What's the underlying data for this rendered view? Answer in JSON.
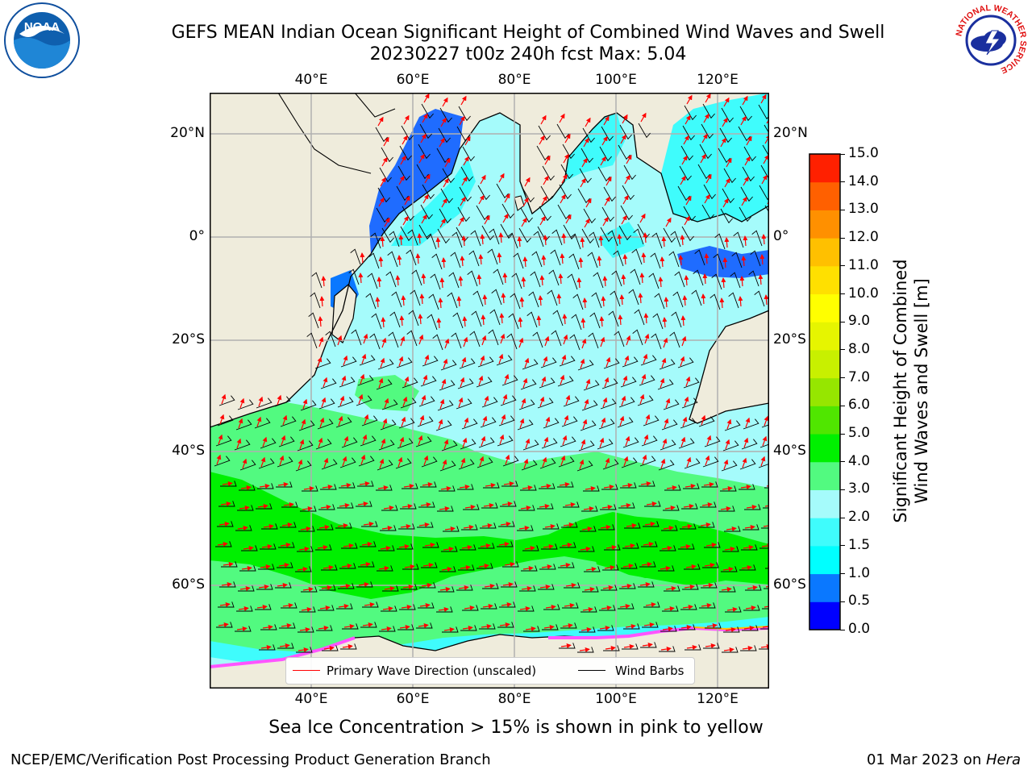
{
  "header": {
    "title_line1": "GEFS MEAN Indian Ocean Significant Height of Combined Wind Waves and Swell",
    "title_line2": "20230227 t00z 240h fcst   Max: 5.04"
  },
  "logos": {
    "left": {
      "icon": "noaa-logo",
      "text": "NOAA"
    },
    "right": {
      "icon": "nws-logo",
      "text": "NATIONAL WEATHER SERVICE"
    }
  },
  "map": {
    "lon_labels": [
      "40°E",
      "60°E",
      "80°E",
      "100°E",
      "120°E"
    ],
    "lat_labels_left": [
      "20°N",
      "0°",
      "20°S",
      "40°S",
      "60°S"
    ],
    "lat_labels_right": [
      "20°N",
      "0°",
      "20°S",
      "40°S",
      "60°S"
    ],
    "colors": {
      "land": "#efecdc",
      "ocean_base": "#a5fbfb",
      "wave_arrow": "#ff0000",
      "wind_barb": "#000000",
      "ice": "#ff55ff"
    }
  },
  "legend": {
    "wave": {
      "label": "Primary Wave Direction (unscaled)",
      "color": "#ff0000"
    },
    "wind": {
      "label": "Wind Barbs",
      "color": "#000000"
    }
  },
  "colorbar": {
    "title_line1": "Significant Height of Combined",
    "title_line2": "Wind Waves and Swell [m]",
    "levels": [
      "0.0",
      "0.5",
      "1.0",
      "1.5",
      "2.0",
      "3.0",
      "4.0",
      "5.0",
      "6.0",
      "7.0",
      "8.0",
      "9.0",
      "10.0",
      "11.0",
      "12.0",
      "13.0",
      "14.0",
      "15.0"
    ],
    "colors": [
      "#0000ff",
      "#0a78ff",
      "#00ffff",
      "#3ffcfc",
      "#a5fbfb",
      "#52fa80",
      "#00f000",
      "#50e600",
      "#96e600",
      "#c8f000",
      "#e6f500",
      "#ffff00",
      "#ffe000",
      "#ffc000",
      "#ff9000",
      "#ff6000",
      "#ff2000"
    ]
  },
  "footer": {
    "ice_note": "Sea Ice Concentration > 15% is shown in pink to yellow",
    "left": "NCEP/EMC/Verification Post Processing Product Generation Branch",
    "date": "01 Mar 2023 on ",
    "host": "Hera"
  }
}
